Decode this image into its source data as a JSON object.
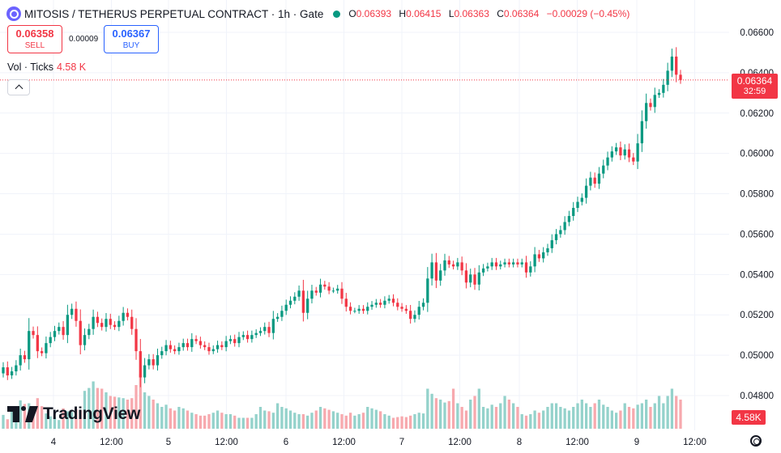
{
  "symbol": {
    "title": "MITOSIS / TETHERUS PERPETUAL CONTRACT · 1h · Gate",
    "icon": "mitosis-coin-icon"
  },
  "ohlc": {
    "o_label": "O",
    "o": "0.06393",
    "h_label": "H",
    "h": "0.06415",
    "l_label": "L",
    "l": "0.06363",
    "c_label": "C",
    "c": "0.06364",
    "change": "−0.00029 (−0.45%)"
  },
  "trade": {
    "sell_price": "0.06358",
    "sell_label": "SELL",
    "spread": "0.00009",
    "buy_price": "0.06367",
    "buy_label": "BUY"
  },
  "volume_legend": {
    "label": "Vol · Ticks",
    "value": "4.58 K"
  },
  "last_price": {
    "price": "0.06364",
    "countdown": "32:59"
  },
  "volume_tag": "4.58K",
  "watermark": "TradingView",
  "colors": {
    "up": "#089981",
    "down": "#f23645",
    "vol_up": "#94d2cb",
    "vol_down": "#f7a9ae",
    "grid": "#f0f3fa",
    "axis_text": "#131722"
  },
  "chart_data": {
    "type": "candlestick",
    "interval": "1h",
    "y_axis": {
      "min": 0.0466,
      "max": 0.0666,
      "ticks": [
        "0.06600",
        "0.06400",
        "0.06200",
        "0.06000",
        "0.05800",
        "0.05600",
        "0.05400",
        "0.05200",
        "0.05000",
        "0.04800"
      ]
    },
    "x_axis": {
      "labels": [
        "4",
        "12:00",
        "5",
        "12:00",
        "6",
        "12:00",
        "7",
        "12:00",
        "8",
        "12:00",
        "9",
        "12:00"
      ]
    },
    "grid": true,
    "close_start": 0.0491,
    "closes": [
      0.0494,
      0.049,
      0.0492,
      0.0495,
      0.05,
      0.0498,
      0.0512,
      0.051,
      0.0502,
      0.0501,
      0.0506,
      0.0509,
      0.0512,
      0.0514,
      0.051,
      0.052,
      0.0523,
      0.0517,
      0.0505,
      0.051,
      0.0513,
      0.0519,
      0.0516,
      0.0514,
      0.0518,
      0.0515,
      0.0514,
      0.0517,
      0.0521,
      0.0519,
      0.0513,
      0.0502,
      0.0489,
      0.0495,
      0.0498,
      0.0495,
      0.05,
      0.0502,
      0.0505,
      0.0503,
      0.0502,
      0.0504,
      0.0506,
      0.0504,
      0.0508,
      0.0507,
      0.0505,
      0.0504,
      0.0502,
      0.0503,
      0.0505,
      0.0504,
      0.0507,
      0.0508,
      0.0506,
      0.0509,
      0.051,
      0.0508,
      0.051,
      0.0511,
      0.0512,
      0.0514,
      0.0511,
      0.0518,
      0.0519,
      0.0522,
      0.0525,
      0.0527,
      0.0529,
      0.0532,
      0.0521,
      0.0528,
      0.0532,
      0.0531,
      0.0535,
      0.0534,
      0.0532,
      0.0532,
      0.0533,
      0.0528,
      0.0524,
      0.0522,
      0.0522,
      0.0523,
      0.0522,
      0.0524,
      0.0525,
      0.0526,
      0.0525,
      0.0527,
      0.0528,
      0.0526,
      0.0524,
      0.0523,
      0.0522,
      0.0518,
      0.052,
      0.0524,
      0.0526,
      0.0538,
      0.0546,
      0.0537,
      0.0542,
      0.0547,
      0.0545,
      0.0544,
      0.0546,
      0.0542,
      0.0536,
      0.054,
      0.0535,
      0.0541,
      0.0543,
      0.0544,
      0.0546,
      0.0544,
      0.0545,
      0.0546,
      0.0545,
      0.0546,
      0.0545,
      0.0546,
      0.0541,
      0.0544,
      0.055,
      0.0548,
      0.0551,
      0.0553,
      0.0557,
      0.056,
      0.0562,
      0.0566,
      0.0569,
      0.0573,
      0.0576,
      0.0578,
      0.0584,
      0.0588,
      0.0585,
      0.059,
      0.0594,
      0.0598,
      0.0601,
      0.0603,
      0.0599,
      0.0602,
      0.0598,
      0.0596,
      0.0605,
      0.0616,
      0.0625,
      0.0623,
      0.0629,
      0.063,
      0.0634,
      0.0641,
      0.0648,
      0.0639,
      0.06364
    ],
    "volumes": [
      0.19,
      0.13,
      0.27,
      0.28,
      0.39,
      0.34,
      0.35,
      0.19,
      0.42,
      0.31,
      0.21,
      0.17,
      0.16,
      0.12,
      0.28,
      0.24,
      0.23,
      0.27,
      0.25,
      0.52,
      0.56,
      0.65,
      0.56,
      0.55,
      0.5,
      0.45,
      0.44,
      0.43,
      0.42,
      0.4,
      0.42,
      0.6,
      0.75,
      0.5,
      0.45,
      0.4,
      0.35,
      0.3,
      0.33,
      0.28,
      0.25,
      0.3,
      0.28,
      0.25,
      0.22,
      0.2,
      0.18,
      0.18,
      0.2,
      0.22,
      0.25,
      0.22,
      0.2,
      0.2,
      0.18,
      0.15,
      0.15,
      0.15,
      0.15,
      0.2,
      0.3,
      0.25,
      0.24,
      0.22,
      0.35,
      0.3,
      0.28,
      0.25,
      0.22,
      0.2,
      0.2,
      0.18,
      0.22,
      0.25,
      0.3,
      0.28,
      0.26,
      0.24,
      0.22,
      0.2,
      0.18,
      0.22,
      0.18,
      0.2,
      0.22,
      0.3,
      0.28,
      0.26,
      0.24,
      0.2,
      0.18,
      0.15,
      0.16,
      0.17,
      0.16,
      0.18,
      0.2,
      0.22,
      0.21,
      0.55,
      0.48,
      0.42,
      0.4,
      0.36,
      0.38,
      0.55,
      0.35,
      0.3,
      0.25,
      0.4,
      0.45,
      0.55,
      0.3,
      0.28,
      0.33,
      0.3,
      0.35,
      0.45,
      0.4,
      0.35,
      0.3,
      0.2,
      0.18,
      0.2,
      0.25,
      0.22,
      0.25,
      0.3,
      0.35,
      0.35,
      0.3,
      0.28,
      0.25,
      0.3,
      0.35,
      0.4,
      0.35,
      0.3,
      0.35,
      0.4,
      0.33,
      0.3,
      0.25,
      0.22,
      0.25,
      0.35,
      0.3,
      0.28,
      0.33,
      0.35,
      0.4,
      0.3,
      0.35,
      0.45,
      0.35,
      0.45,
      0.55,
      0.45,
      0.4,
      0.3
    ]
  }
}
